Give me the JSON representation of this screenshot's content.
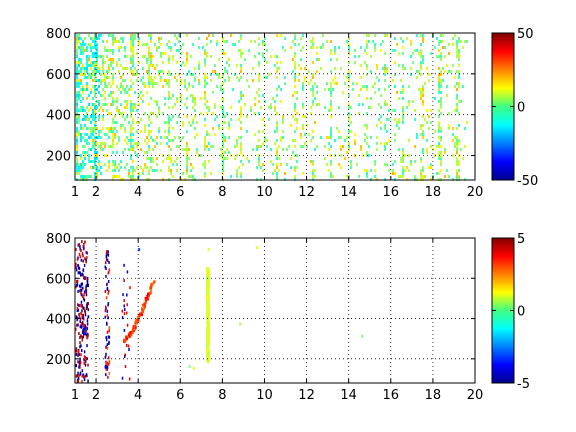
{
  "chart_data": [
    {
      "type": "heatmap",
      "title": "",
      "xlabel": "",
      "ylabel": "",
      "xlim": [
        1,
        20
      ],
      "ylim": [
        80,
        800
      ],
      "xticks": [
        1,
        2,
        4,
        6,
        8,
        10,
        12,
        14,
        16,
        18,
        20
      ],
      "yticks": [
        200,
        400,
        600,
        800
      ],
      "grid": true,
      "colormap": "jet",
      "clim": [
        -50,
        50
      ],
      "colorbar_ticks": [
        -50,
        0,
        50
      ],
      "value_distribution": "sparse cells concentrated near 0 (green-cyan) with scattered yellow to +20, denser at low x"
    },
    {
      "type": "heatmap",
      "title": "",
      "xlabel": "",
      "ylabel": "",
      "xlim": [
        1,
        20
      ],
      "ylim": [
        80,
        800
      ],
      "xticks": [
        1,
        2,
        4,
        6,
        8,
        10,
        12,
        14,
        16,
        18,
        20
      ],
      "yticks": [
        200,
        400,
        600,
        800
      ],
      "grid": true,
      "colormap": "jet",
      "clim": [
        -5,
        5
      ],
      "colorbar_ticks": [
        -5,
        0,
        5
      ],
      "features": [
        {
          "x_range": [
            1.0,
            1.6
          ],
          "y_range": [
            80,
            800
          ],
          "value_range": [
            -5,
            5
          ],
          "note": "sparse vertical streaks, dark red and blue"
        },
        {
          "x_range": [
            2.4,
            2.6
          ],
          "y_range": [
            80,
            750
          ],
          "value_range": [
            -5,
            3
          ],
          "note": "blue/red streaks"
        },
        {
          "x_range": [
            3.2,
            4.8
          ],
          "y_range": [
            300,
            620
          ],
          "value_range": [
            2,
            4
          ],
          "note": "orange-red curve"
        },
        {
          "x_range": [
            7.2,
            7.4
          ],
          "y_range": [
            200,
            660
          ],
          "value_range": [
            0,
            1
          ],
          "note": "green-yellow vertical band"
        }
      ]
    }
  ]
}
